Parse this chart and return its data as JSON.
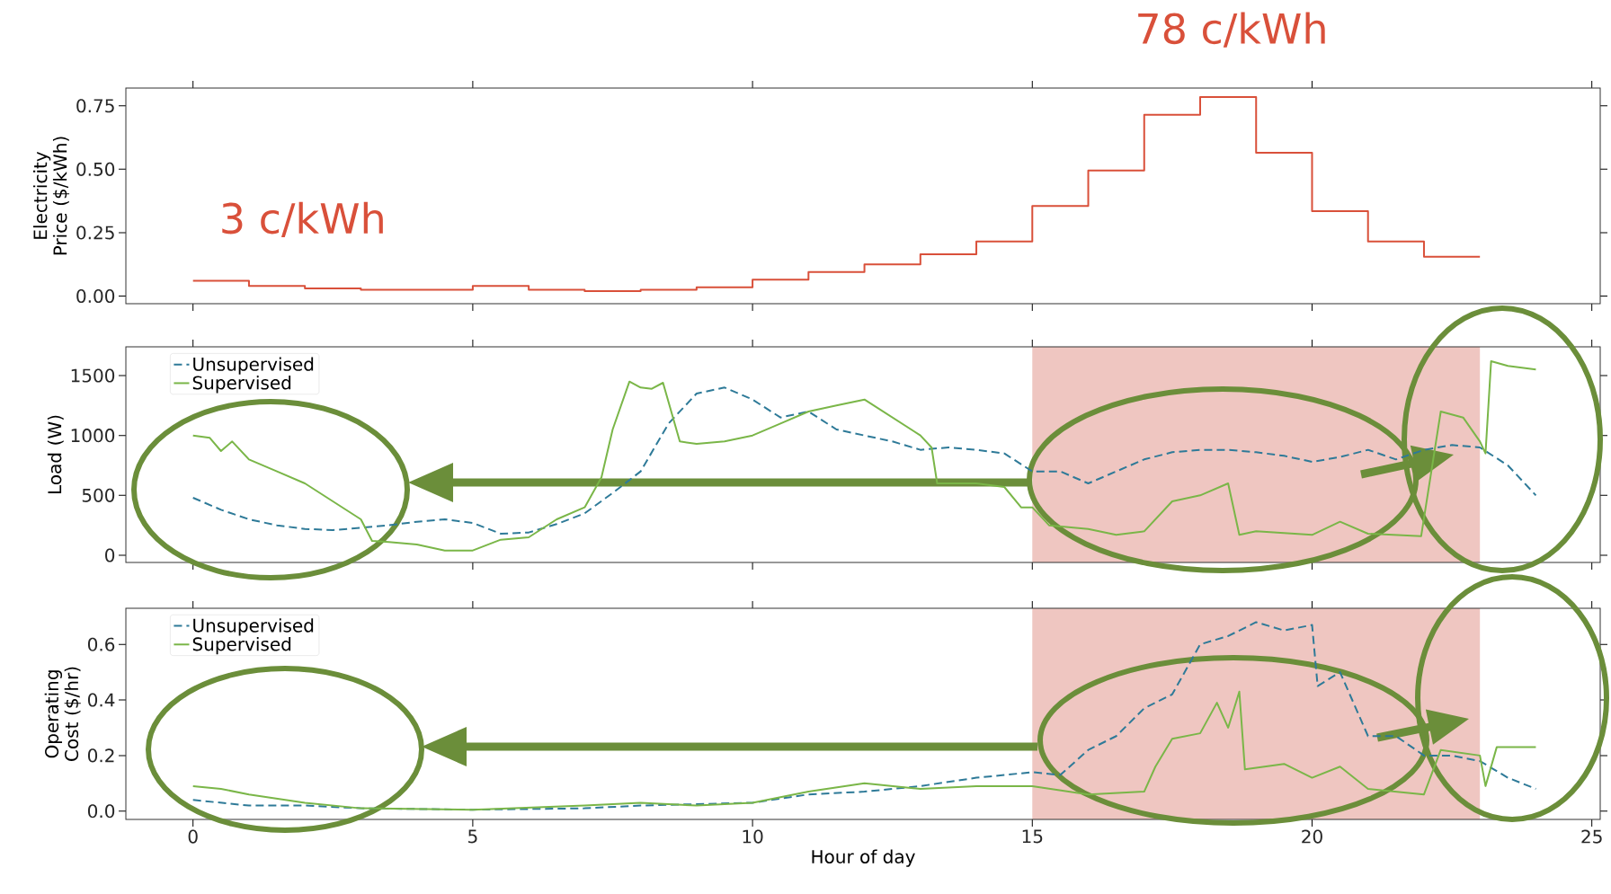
{
  "chart_data": [
    {
      "type": "step",
      "color": "#d9503a",
      "ylabel": "Electricity Price ($/kWh)",
      "annotations": [
        "3 c/kWh",
        "78 c/kWh"
      ],
      "x": [
        0,
        1,
        2,
        3,
        4,
        5,
        6,
        7,
        8,
        9,
        10,
        11,
        12,
        13,
        14,
        15,
        16,
        17,
        18,
        19,
        20,
        21,
        22,
        23
      ],
      "values": [
        0.06,
        0.04,
        0.03,
        0.025,
        0.025,
        0.04,
        0.025,
        0.02,
        0.025,
        0.035,
        0.065,
        0.095,
        0.125,
        0.165,
        0.215,
        0.355,
        0.495,
        0.715,
        0.785,
        0.565,
        0.335,
        0.215,
        0.155,
        0.155
      ],
      "xlim": [
        -1.2,
        25.15
      ],
      "ylim": [
        -0.03,
        0.82
      ],
      "xticks": [
        0,
        5,
        10,
        15,
        20,
        25
      ],
      "yticks": [
        {
          "value": 0,
          "label": "0.00"
        },
        {
          "value": 0.25,
          "label": "0.25"
        },
        {
          "value": 0.5,
          "label": "0.50"
        },
        {
          "value": 0.75,
          "label": "0.75"
        }
      ],
      "tick_labels": "y"
    },
    {
      "type": "line",
      "ylabel": "Load (W)",
      "legend": "top left",
      "xlim": [
        -1.2,
        25.15
      ],
      "ylim": [
        -60,
        1740
      ],
      "xticks": [
        0,
        5,
        10,
        15,
        20,
        25
      ],
      "yticks": [
        0,
        500,
        1000,
        1500
      ],
      "tick_labels": "y",
      "bands": [
        {
          "axis": "x",
          "from": 15,
          "to": 23,
          "color": "#efc6c1"
        }
      ],
      "series": [
        {
          "name": "Unsupervised",
          "color": "#2e7a98",
          "line_style": "dashed",
          "x": [
            0,
            0.5,
            1,
            1.5,
            2,
            2.5,
            3,
            3.5,
            4,
            4.5,
            5,
            5.5,
            6,
            6.5,
            7,
            7.5,
            8,
            8.5,
            9,
            9.5,
            10,
            10.5,
            11,
            11.5,
            12,
            12.5,
            13,
            13.5,
            14,
            14.5,
            15,
            15.5,
            16,
            16.5,
            17,
            17.5,
            18,
            18.5,
            19,
            19.5,
            20,
            20.5,
            21,
            21.5,
            22,
            22.5,
            23,
            23.5,
            24
          ],
          "values": [
            480,
            380,
            300,
            250,
            220,
            210,
            230,
            250,
            280,
            300,
            270,
            180,
            190,
            260,
            350,
            520,
            700,
            1100,
            1350,
            1400,
            1300,
            1150,
            1200,
            1050,
            1000,
            950,
            880,
            900,
            880,
            850,
            700,
            700,
            600,
            700,
            800,
            860,
            880,
            880,
            860,
            830,
            780,
            820,
            880,
            800,
            880,
            920,
            900,
            750,
            500
          ]
        },
        {
          "name": "Supervised",
          "color": "#7ab648",
          "line_style": "solid",
          "x": [
            0,
            0.3,
            0.5,
            0.7,
            1,
            1.5,
            2,
            2.5,
            3,
            3.2,
            3.5,
            4,
            4.5,
            5,
            5.5,
            6,
            6.5,
            7,
            7.3,
            7.5,
            7.8,
            8,
            8.2,
            8.4,
            8.7,
            9,
            9.5,
            10,
            10.5,
            11,
            11.5,
            12,
            12.5,
            13,
            13.2,
            13.3,
            14,
            14.5,
            14.8,
            15,
            15.3,
            16,
            16.5,
            17,
            17.5,
            18,
            18.5,
            18.7,
            19,
            20,
            20.5,
            21,
            21.95,
            22.3,
            22.7,
            23,
            23.1,
            23.2,
            23.5,
            24
          ],
          "values": [
            1000,
            980,
            870,
            950,
            800,
            700,
            600,
            450,
            300,
            120,
            110,
            90,
            40,
            40,
            130,
            150,
            300,
            400,
            650,
            1050,
            1450,
            1400,
            1390,
            1440,
            950,
            930,
            950,
            1000,
            1100,
            1200,
            1250,
            1300,
            1150,
            1000,
            900,
            600,
            600,
            570,
            400,
            400,
            250,
            220,
            170,
            200,
            450,
            500,
            600,
            170,
            200,
            170,
            280,
            180,
            160,
            1200,
            1150,
            950,
            850,
            1620,
            1580,
            1550
          ]
        }
      ]
    },
    {
      "type": "line",
      "ylabel": "Operating Cost ($/hr)",
      "xlabel": "Hour of day",
      "legend": "top left",
      "xlim": [
        -1.2,
        25.15
      ],
      "ylim": [
        -0.03,
        0.73
      ],
      "xticks": [
        0,
        5,
        10,
        15,
        20,
        25
      ],
      "yticks": [
        {
          "value": 0,
          "label": "0.0"
        },
        {
          "value": 0.2,
          "label": "0.2"
        },
        {
          "value": 0.4,
          "label": "0.4"
        },
        {
          "value": 0.6,
          "label": "0.6"
        }
      ],
      "bands": [
        {
          "axis": "x",
          "from": 15,
          "to": 23,
          "color": "#efc6c1"
        }
      ],
      "series": [
        {
          "name": "Unsupervised",
          "color": "#2e7a98",
          "line_style": "dashed",
          "x": [
            0,
            1,
            2,
            3,
            5,
            7,
            8,
            9,
            10,
            11,
            12,
            13,
            14,
            15,
            15.5,
            16,
            16.5,
            17,
            17.5,
            18,
            18.5,
            19,
            19.5,
            20,
            20.1,
            20.5,
            21,
            21.5,
            22,
            22.5,
            23,
            23.5,
            24
          ],
          "values": [
            0.04,
            0.02,
            0.02,
            0.01,
            0.005,
            0.01,
            0.02,
            0.025,
            0.03,
            0.06,
            0.07,
            0.09,
            0.12,
            0.14,
            0.13,
            0.22,
            0.27,
            0.37,
            0.42,
            0.6,
            0.63,
            0.68,
            0.65,
            0.67,
            0.45,
            0.5,
            0.27,
            0.27,
            0.2,
            0.2,
            0.18,
            0.12,
            0.08
          ]
        },
        {
          "name": "Supervised",
          "color": "#7ab648",
          "line_style": "solid",
          "x": [
            0,
            0.5,
            1,
            2,
            3,
            5,
            7,
            8,
            9,
            10,
            11,
            12,
            13,
            14,
            15,
            16,
            17,
            17.2,
            17.5,
            18,
            18.3,
            18.5,
            18.7,
            18.8,
            19.5,
            20,
            20.5,
            21,
            22,
            22.3,
            23,
            23.1,
            23.3,
            24
          ],
          "values": [
            0.09,
            0.08,
            0.06,
            0.03,
            0.01,
            0.005,
            0.02,
            0.03,
            0.02,
            0.03,
            0.07,
            0.1,
            0.08,
            0.09,
            0.09,
            0.06,
            0.07,
            0.16,
            0.26,
            0.28,
            0.39,
            0.3,
            0.43,
            0.15,
            0.17,
            0.12,
            0.16,
            0.08,
            0.06,
            0.22,
            0.2,
            0.09,
            0.23,
            0.23
          ]
        }
      ]
    }
  ]
}
